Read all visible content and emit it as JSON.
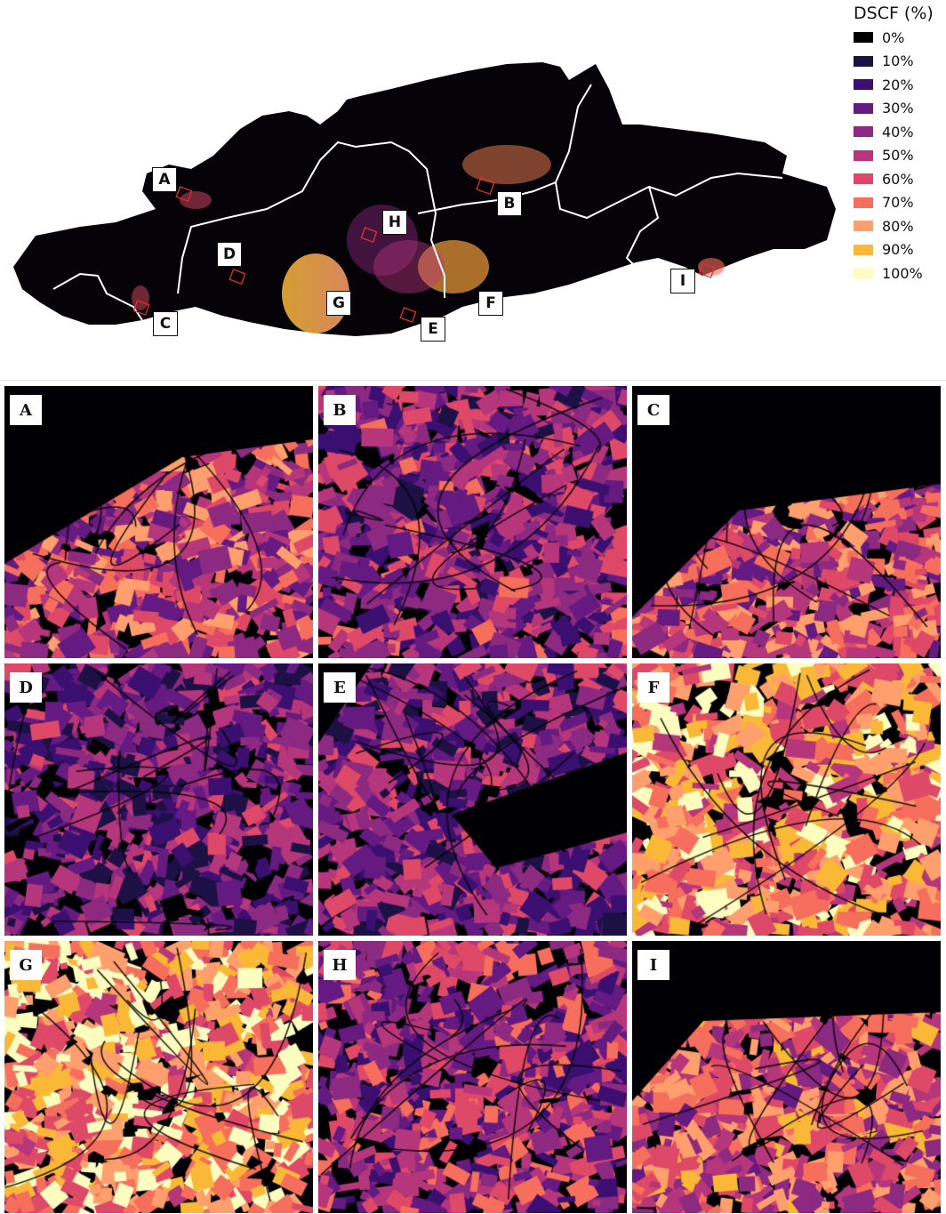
{
  "legend": {
    "title": "DSCF (%)",
    "items": [
      {
        "label": "0%",
        "color": "#000004"
      },
      {
        "label": "10%",
        "color": "#1c1044"
      },
      {
        "label": "20%",
        "color": "#3b0f70"
      },
      {
        "label": "30%",
        "color": "#641a80"
      },
      {
        "label": "40%",
        "color": "#8c2981"
      },
      {
        "label": "50%",
        "color": "#b5367a"
      },
      {
        "label": "60%",
        "color": "#de4968"
      },
      {
        "label": "70%",
        "color": "#f66e5c"
      },
      {
        "label": "80%",
        "color": "#fe9f6d"
      },
      {
        "label": "90%",
        "color": "#f9b937"
      },
      {
        "label": "100%",
        "color": "#fcfdbf"
      }
    ]
  },
  "map_labels": [
    "A",
    "B",
    "C",
    "D",
    "E",
    "F",
    "G",
    "H",
    "I"
  ],
  "panels": [
    {
      "label": "A",
      "level": 0.55
    },
    {
      "label": "B",
      "level": 0.4
    },
    {
      "label": "C",
      "level": 0.55
    },
    {
      "label": "D",
      "level": 0.3
    },
    {
      "label": "E",
      "level": 0.35
    },
    {
      "label": "F",
      "level": 0.75
    },
    {
      "label": "G",
      "level": 0.8
    },
    {
      "label": "H",
      "level": 0.45
    },
    {
      "label": "I",
      "level": 0.6
    }
  ]
}
